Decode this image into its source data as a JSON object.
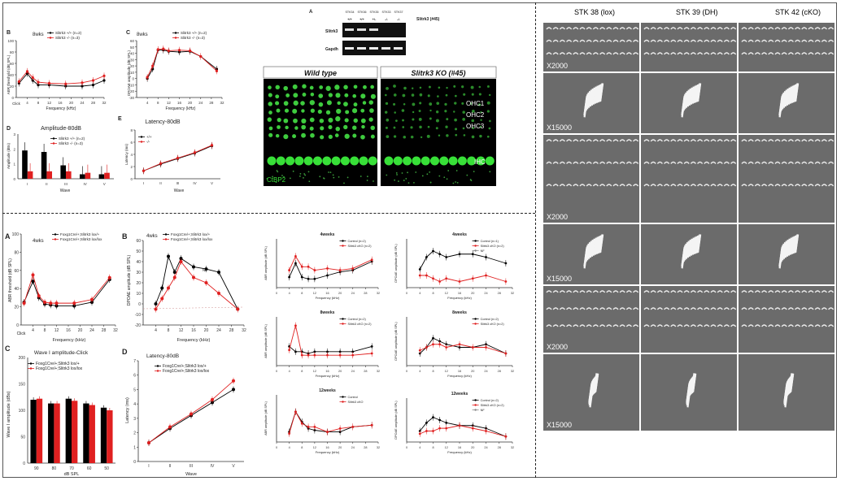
{
  "sem": {
    "columns": [
      "STK 38 (lox)",
      "STK 39 (DH)",
      "STK 42 (cKO)"
    ],
    "mags": [
      "X2000",
      "X15000",
      "X2000",
      "X15000",
      "X2000",
      "X15000"
    ]
  },
  "blot": {
    "panel_letter": "A",
    "lanes": [
      "STK34",
      "STK36",
      "STK35",
      "STK33",
      "STK37"
    ],
    "genotypes": [
      "+/+",
      "+/+",
      "+/-",
      "-/-",
      "-/-"
    ],
    "title": "Slitrk3 (#45)",
    "rows": [
      "Slitrk3",
      "Gapdh"
    ]
  },
  "fluor": {
    "wt_label": "Wild type",
    "ko_label": "Slitrk3 KO (#45)",
    "cell_labels": [
      "OHC1",
      "OHC2",
      "OHC3",
      "IHC"
    ],
    "stain": "CtBP2"
  },
  "top": {
    "b": {
      "letter": "B",
      "age": "8wks",
      "ylabel": "ABR threshold (dB SPL)",
      "xlabel": "Frequency (kHz)",
      "legend": [
        "Slitrk3 +/+ (n=2)",
        "Slitrk3 -/- (n=3)"
      ],
      "click": "Click"
    },
    "c": {
      "letter": "C",
      "age": "8wks",
      "ylabel": "DPOAE amplitude (dB SPL)",
      "xlabel": "Frequency (kHz)",
      "legend": [
        "Slitrk3 +/+ (n=2)",
        "Slitrk3 -/- (n=3)"
      ]
    },
    "d": {
      "letter": "D",
      "title": "Amplitude-80dB",
      "ylabel": "Amplitude (dBs)",
      "xlabel": "Wave",
      "legend": [
        "Slitrk3 +/+ (n=2)",
        "Slitrk3 -/- (n=3)"
      ],
      "waves": [
        "I",
        "II",
        "III",
        "IV",
        "V"
      ]
    },
    "e": {
      "letter": "E",
      "title": "Latency-80dB",
      "ylabel": "Latency (ms)",
      "xlabel": "Wave",
      "legend": [
        "+/+",
        "-/-"
      ],
      "waves": [
        "I",
        "II",
        "III",
        "IV",
        "V"
      ]
    }
  },
  "bottom": {
    "a": {
      "letter": "A",
      "age": "4wks",
      "ylabel": "ABR threshold (dB SPL)",
      "xlabel": "Frequency (kHz)",
      "legend": [
        "Foxg1Cre/+;Slitrk3 lox/+",
        "Foxg1Cre/+;Slitrk3 lox/lox"
      ],
      "click": "Click"
    },
    "b": {
      "letter": "B",
      "age": "4wks",
      "ylabel": "DPOAE amplitude (dB SPL)",
      "xlabel": "Frequency (kHz)",
      "legend": [
        "Foxg1Cre/+;Slitrk3 lox/+",
        "Foxg1Cre/+;Slitrk3 lox/lox"
      ],
      "nf": "NF"
    },
    "c": {
      "letter": "C",
      "title": "Wave I amplitude-Click",
      "ylabel": "Wave I amplitude (dBs)",
      "xlabel": "dB SPL",
      "legend": [
        "Foxg1Cre/+;Slitrk3 lox/+",
        "Foxg1Cre/+;Slitrk3 lox/lox"
      ],
      "levels": [
        "90",
        "80",
        "70",
        "60",
        "50"
      ]
    },
    "d": {
      "letter": "D",
      "title": "Latency-80dB",
      "ylabel": "Latency (ms)",
      "xlabel": "Wave",
      "legend": [
        "Foxg1Cre/+;Slitrk3 lox/+",
        "Foxg1Cre/+;Slitrk3 lox/lox"
      ],
      "waves": [
        "I",
        "II",
        "III",
        "IV",
        "V"
      ]
    }
  },
  "small": [
    {
      "title": "4weeks",
      "ylabel": "ABR amplitude (dB SPL)",
      "xlabel": "Frequency (kHz)",
      "legend": [
        "Control (n=2)",
        "Slitrk3 cKO (n=2)"
      ]
    },
    {
      "title": "4weeks",
      "ylabel": "DPOAE amplitude (dB SPL)",
      "xlabel": "Frequency (kHz)",
      "legend": [
        "Control (n=1)",
        "Slitrk3 cKO (n=2)",
        "NF"
      ]
    },
    {
      "title": "8weeks",
      "ylabel": "ABR amplitude (dB SPL)",
      "xlabel": "Frequency (kHz)",
      "legend": [
        "Control (n=2)",
        "Slitrk3 cKO (n=2)"
      ]
    },
    {
      "title": "8weeks",
      "ylabel": "DPOAE amplitude (dB SPL)",
      "xlabel": "Frequency (kHz)",
      "legend": [
        "Control (n=2)",
        "Slitrk3 cKO (n=2)"
      ]
    },
    {
      "title": "12weeks",
      "ylabel": "ABR amplitude (dB SPL)",
      "xlabel": "Frequency (kHz)",
      "legend": [
        "Control",
        "Slitrk3 cKO"
      ]
    },
    {
      "title": "12weeks",
      "ylabel": "DPOAE amplitude (dB SPL)",
      "xlabel": "Frequency (kHz)",
      "legend": [
        "Control (n=2)",
        "Slitrk3 cKO (n=2)",
        "NF"
      ]
    }
  ],
  "chart_data": [
    {
      "id": "top_b",
      "type": "line",
      "title": "8wks",
      "ylabel": "ABR threshold (dB SPL)",
      "xlabel": "Frequency (kHz)",
      "x": [
        "Click",
        4,
        6,
        8,
        12,
        18,
        24,
        28,
        32
      ],
      "xticks": [
        4,
        8,
        12,
        16,
        20,
        24,
        28,
        32
      ],
      "ylim": [
        0,
        100
      ],
      "yticks": [
        0,
        20,
        40,
        60,
        80,
        100
      ],
      "series": [
        {
          "name": "Slitrk3 +/+ (n=2)",
          "color": "#000000",
          "values": [
            25,
            42,
            30,
            22,
            22,
            20,
            20,
            22,
            30
          ]
        },
        {
          "name": "Slitrk3 -/- (n=3)",
          "color": "#e02020",
          "values": [
            28,
            46,
            35,
            27,
            25,
            24,
            26,
            30,
            38
          ]
        }
      ]
    },
    {
      "id": "top_c",
      "type": "line",
      "title": "8wks",
      "ylabel": "DPOAE amplitude (dB SPL)",
      "xlabel": "Frequency (kHz)",
      "x": [
        4,
        6,
        8,
        10,
        12,
        16,
        20,
        24,
        30
      ],
      "xticks": [
        4,
        8,
        12,
        16,
        20,
        24,
        28,
        32
      ],
      "ylim": [
        -30,
        60
      ],
      "yticks": [
        -30,
        -20,
        -10,
        0,
        10,
        20,
        30,
        40,
        50,
        60
      ],
      "series": [
        {
          "name": "Slitrk3 +/+ (n=2)",
          "color": "#000000",
          "values": [
            0,
            15,
            45,
            45,
            43,
            42,
            43,
            35,
            15
          ]
        },
        {
          "name": "Slitrk3 -/- (n=3)",
          "color": "#e02020",
          "values": [
            2,
            20,
            46,
            47,
            44,
            45,
            44,
            35,
            12
          ]
        }
      ]
    },
    {
      "id": "top_d",
      "type": "bar",
      "title": "Amplitude-80dB",
      "ylabel": "Amplitude (dBs)",
      "xlabel": "Wave",
      "categories": [
        "I",
        "II",
        "III",
        "IV",
        "V"
      ],
      "ylim": [
        0,
        3
      ],
      "yticks": [
        0,
        1,
        2,
        3
      ],
      "series": [
        {
          "name": "Slitrk3 +/+ (n=2)",
          "color": "#000000",
          "values": [
            1.9,
            1.8,
            0.9,
            0.3,
            0.3
          ]
        },
        {
          "name": "Slitrk3 -/- (n=3)",
          "color": "#e02020",
          "values": [
            0.5,
            0.5,
            0.5,
            0.4,
            0.4
          ]
        }
      ]
    },
    {
      "id": "top_e",
      "type": "line",
      "title": "Latency-80dB",
      "ylabel": "Latency (ms)",
      "xlabel": "Wave",
      "categories": [
        "I",
        "II",
        "III",
        "IV",
        "V"
      ],
      "ylim": [
        0,
        8
      ],
      "yticks": [
        0,
        2,
        4,
        6,
        8
      ],
      "series": [
        {
          "name": "+/+",
          "color": "#000000",
          "values": [
            1.3,
            2.4,
            3.3,
            4.2,
            5.4
          ]
        },
        {
          "name": "-/-",
          "color": "#e02020",
          "values": [
            1.3,
            2.5,
            3.4,
            4.3,
            5.5
          ]
        }
      ]
    },
    {
      "id": "bot_a",
      "type": "line",
      "title": "4wks",
      "ylabel": "ABR threshold (dB SPL)",
      "xlabel": "Frequency (kHz)",
      "x": [
        "Click",
        4,
        6,
        8,
        10,
        12,
        18,
        24,
        30
      ],
      "xticks": [
        4,
        8,
        12,
        16,
        20,
        24,
        28,
        32
      ],
      "ylim": [
        0,
        100
      ],
      "yticks": [
        0,
        20,
        40,
        60,
        80,
        100
      ],
      "series": [
        {
          "name": "Foxg1Cre/+;Slitrk3 lox/+",
          "color": "#000000",
          "values": [
            25,
            48,
            30,
            23,
            22,
            21,
            21,
            25,
            50
          ]
        },
        {
          "name": "Foxg1Cre/+;Slitrk3 lox/lox",
          "color": "#e02020",
          "values": [
            24,
            55,
            32,
            25,
            24,
            24,
            24,
            28,
            52
          ]
        }
      ]
    },
    {
      "id": "bot_b",
      "type": "line",
      "title": "4wks",
      "ylabel": "DPOAE amplitude (dB SPL)",
      "xlabel": "Frequency (kHz)",
      "x": [
        4,
        6,
        8,
        10,
        12,
        16,
        20,
        24,
        30
      ],
      "xticks": [
        4,
        8,
        12,
        16,
        20,
        24,
        28,
        32
      ],
      "ylim": [
        -20,
        60
      ],
      "yticks": [
        -20,
        -10,
        0,
        10,
        20,
        30,
        40,
        50,
        60
      ],
      "series": [
        {
          "name": "Foxg1Cre/+;Slitrk3 lox/+",
          "color": "#000000",
          "values": [
            0,
            15,
            45,
            30,
            43,
            35,
            33,
            30,
            -5
          ]
        },
        {
          "name": "Foxg1Cre/+;Slitrk3 lox/lox",
          "color": "#e02020",
          "values": [
            -5,
            5,
            15,
            25,
            40,
            25,
            20,
            10,
            -5
          ]
        }
      ]
    },
    {
      "id": "bot_c",
      "type": "bar",
      "title": "Wave I amplitude-Click",
      "ylabel": "Wave I amplitude (dBs)",
      "xlabel": "dB SPL",
      "categories": [
        "90",
        "80",
        "70",
        "60",
        "50"
      ],
      "ylim": [
        0,
        200
      ],
      "yticks": [
        0,
        50,
        100,
        150,
        200
      ],
      "series": [
        {
          "name": "Foxg1Cre/+;Slitrk3 lox/+",
          "color": "#000000",
          "values": [
            120,
            113,
            122,
            113,
            105
          ]
        },
        {
          "name": "Foxg1Cre/+;Slitrk3 lox/lox",
          "color": "#e02020",
          "values": [
            122,
            113,
            118,
            110,
            100
          ]
        }
      ]
    },
    {
      "id": "bot_d",
      "type": "line",
      "title": "Latency-80dB",
      "ylabel": "Latency (ms)",
      "xlabel": "Wave",
      "categories": [
        "I",
        "II",
        "III",
        "IV",
        "V"
      ],
      "ylim": [
        0,
        7
      ],
      "yticks": [
        0,
        1,
        2,
        3,
        4,
        5,
        6,
        7
      ],
      "series": [
        {
          "name": "Foxg1Cre/+;Slitrk3 lox/+",
          "color": "#000000",
          "values": [
            1.3,
            2.3,
            3.2,
            4.1,
            5.0
          ]
        },
        {
          "name": "Foxg1Cre/+;Slitrk3 lox/lox",
          "color": "#e02020",
          "values": [
            1.3,
            2.4,
            3.3,
            4.3,
            5.6
          ]
        }
      ]
    },
    {
      "id": "s1",
      "type": "line",
      "title": "4weeks",
      "x": [
        4,
        6,
        8,
        10,
        12,
        16,
        20,
        24,
        30
      ],
      "xticks": [
        0,
        4,
        8,
        12,
        16,
        20,
        24,
        28,
        32
      ],
      "ylim": [
        0,
        140
      ],
      "series": [
        {
          "name": "Control (n=2)",
          "color": "#000000",
          "values": [
            30,
            70,
            30,
            25,
            25,
            35,
            45,
            50,
            75
          ]
        },
        {
          "name": "Slitrk3 cKO (n=2)",
          "color": "#e02020",
          "values": [
            50,
            90,
            60,
            60,
            50,
            55,
            50,
            55,
            80
          ]
        }
      ]
    },
    {
      "id": "s2",
      "type": "line",
      "title": "4weeks",
      "x": [
        4,
        6,
        8,
        10,
        12,
        16,
        20,
        24,
        30
      ],
      "xticks": [
        0,
        4,
        8,
        12,
        16,
        20,
        24,
        28,
        32
      ],
      "ylim": [
        -20,
        60
      ],
      "series": [
        {
          "name": "Control (n=1)",
          "color": "#000000",
          "values": [
            10,
            30,
            40,
            35,
            30,
            35,
            35,
            30,
            20
          ]
        },
        {
          "name": "Slitrk3 cKO (n=2)",
          "color": "#e02020",
          "values": [
            0,
            0,
            -5,
            -10,
            -5,
            -10,
            -5,
            0,
            -10
          ]
        }
      ]
    },
    {
      "id": "s3",
      "type": "line",
      "title": "8weeks",
      "x": [
        4,
        6,
        8,
        10,
        12,
        16,
        20,
        24,
        30
      ],
      "xticks": [
        0,
        4,
        8,
        12,
        16,
        20,
        24,
        28,
        32
      ],
      "ylim": [
        0,
        140
      ],
      "series": [
        {
          "name": "Control (n=2)",
          "color": "#000000",
          "values": [
            55,
            40,
            40,
            35,
            40,
            40,
            40,
            40,
            55
          ]
        },
        {
          "name": "Slitrk3 cKO (n=2)",
          "color": "#e02020",
          "values": [
            45,
            115,
            30,
            30,
            30,
            30,
            30,
            30,
            35
          ]
        }
      ]
    },
    {
      "id": "s4",
      "type": "line",
      "title": "8weeks",
      "x": [
        4,
        6,
        8,
        10,
        12,
        16,
        20,
        24,
        30
      ],
      "xticks": [
        0,
        4,
        8,
        12,
        16,
        20,
        24,
        28,
        32
      ],
      "ylim": [
        -20,
        60
      ],
      "series": [
        {
          "name": "Control (n=2)",
          "color": "#000000",
          "values": [
            0,
            10,
            25,
            20,
            15,
            10,
            10,
            15,
            0
          ]
        },
        {
          "name": "Slitrk3 cKO (n=2)",
          "color": "#e02020",
          "values": [
            5,
            10,
            15,
            15,
            10,
            15,
            10,
            10,
            0
          ]
        }
      ]
    },
    {
      "id": "s5",
      "type": "line",
      "title": "12weeks",
      "x": [
        4,
        6,
        8,
        10,
        12,
        16,
        20,
        24,
        30
      ],
      "xticks": [
        0,
        4,
        8,
        12,
        16,
        20,
        24,
        28,
        32
      ],
      "ylim": [
        0,
        140
      ],
      "series": [
        {
          "name": "Control",
          "color": "#000000",
          "values": [
            30,
            90,
            60,
            40,
            35,
            30,
            30,
            45,
            50
          ]
        },
        {
          "name": "Slitrk3 cKO",
          "color": "#e02020",
          "values": [
            25,
            90,
            55,
            45,
            45,
            30,
            40,
            45,
            50
          ]
        }
      ]
    },
    {
      "id": "s6",
      "type": "line",
      "title": "12weeks",
      "x": [
        4,
        6,
        8,
        10,
        12,
        16,
        20,
        24,
        30
      ],
      "xticks": [
        0,
        4,
        8,
        12,
        16,
        20,
        24,
        28,
        32
      ],
      "ylim": [
        -20,
        60
      ],
      "series": [
        {
          "name": "Control (n=2)",
          "color": "#000000",
          "values": [
            0,
            15,
            25,
            20,
            15,
            10,
            10,
            5,
            -10
          ]
        },
        {
          "name": "Slitrk3 cKO (n=2)",
          "color": "#e02020",
          "values": [
            -5,
            0,
            0,
            5,
            5,
            10,
            5,
            0,
            -10
          ]
        }
      ]
    }
  ]
}
